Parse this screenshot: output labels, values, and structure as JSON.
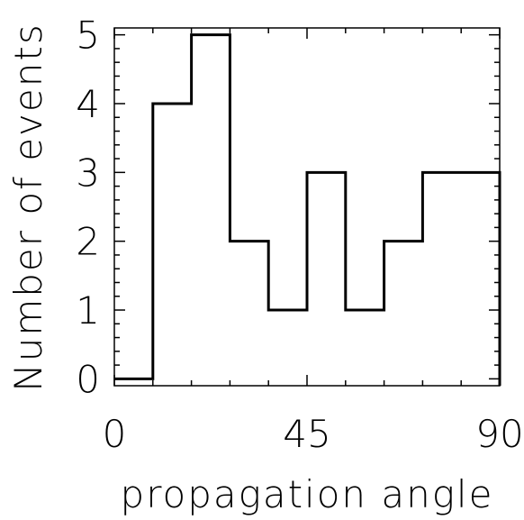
{
  "chart_data": {
    "type": "bar",
    "style": "step-histogram",
    "xlabel": "propagation angle",
    "ylabel": "Number of events",
    "xlim": [
      0,
      90
    ],
    "ylim": [
      -0.1,
      5.1
    ],
    "x_ticks": [
      0,
      45,
      90
    ],
    "x_tick_labels": [
      "0",
      "45",
      "90"
    ],
    "y_ticks": [
      0,
      1,
      2,
      3,
      4,
      5
    ],
    "y_tick_labels": [
      "0",
      "1",
      "2",
      "3",
      "4",
      "5"
    ],
    "bin_edges": [
      0,
      9,
      18,
      27,
      36,
      45,
      54,
      63,
      72,
      81,
      90
    ],
    "values": [
      0,
      4,
      5,
      2,
      1,
      3,
      1,
      2,
      3,
      3
    ],
    "grid": false,
    "line_color": "#000000"
  }
}
